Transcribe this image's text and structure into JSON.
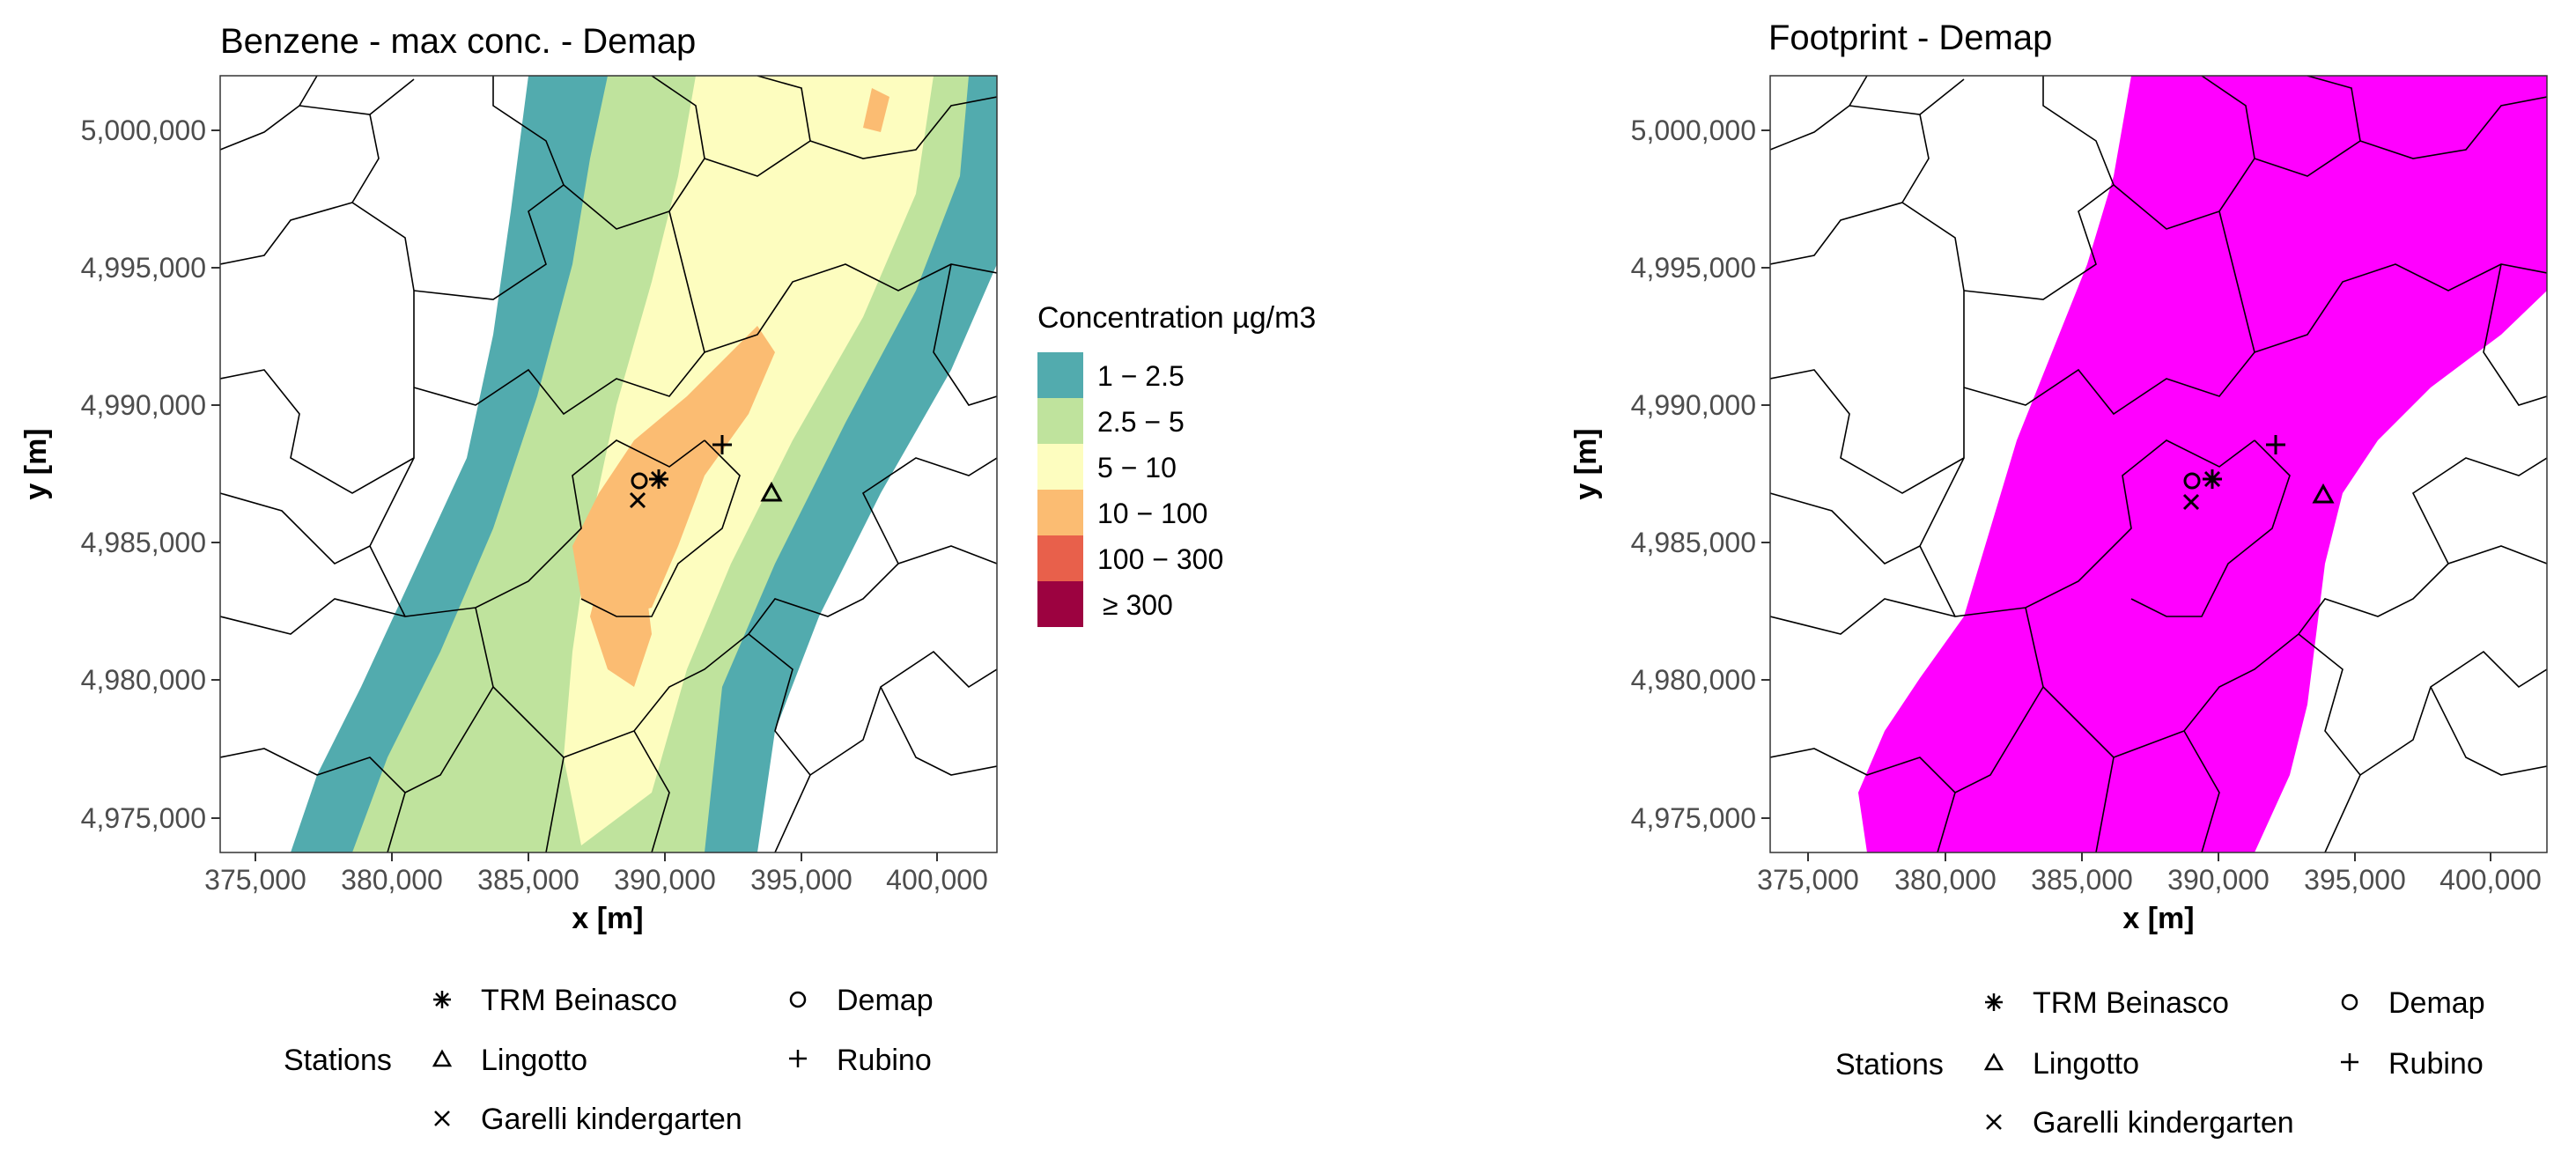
{
  "left_panel": {
    "title": "Benzene - max conc. - Demap",
    "xlabel": "x [m]",
    "ylabel": "y [m]",
    "x_ticks": [
      "375,000",
      "380,000",
      "385,000",
      "390,000",
      "395,000",
      "400,000"
    ],
    "y_ticks": [
      "5,000,000",
      "4,995,000",
      "4,990,000",
      "4,985,000",
      "4,980,000",
      "4,975,000"
    ],
    "legend": {
      "title": "Concentration µg/m3",
      "items": [
        {
          "label": "1 − 2.5",
          "color": "#52abae"
        },
        {
          "label": "2.5 − 5",
          "color": "#bfe39d"
        },
        {
          "label": "5 − 10",
          "color": "#fdfdbf"
        },
        {
          "label": "10 − 100",
          "color": "#fbbc72"
        },
        {
          "label": "100 − 300",
          "color": "#e8604b"
        },
        {
          "label": "≥ 300",
          "color": "#9c0240"
        }
      ]
    },
    "stations_legend": {
      "title": "Stations",
      "items": [
        "TRM Beinasco",
        "Lingotto",
        "Garelli kindergarten",
        "Demap",
        "Rubino"
      ]
    }
  },
  "right_panel": {
    "title": "Footprint - Demap",
    "xlabel": "x [m]",
    "ylabel": "y [m]",
    "x_ticks": [
      "375,000",
      "380,000",
      "385,000",
      "390,000",
      "395,000",
      "400,000"
    ],
    "y_ticks": [
      "5,000,000",
      "4,995,000",
      "4,990,000",
      "4,985,000",
      "4,980,000",
      "4,975,000"
    ],
    "footprint_color": "#ff00ff",
    "stations_legend": {
      "title": "Stations",
      "items": [
        "TRM Beinasco",
        "Lingotto",
        "Garelli kindergarten",
        "Demap",
        "Rubino"
      ]
    }
  },
  "chart_data": [
    {
      "type": "heatmap",
      "title": "Benzene - max conc. - Demap",
      "xlabel": "x [m]",
      "ylabel": "y [m]",
      "xlim": [
        373000,
        401500
      ],
      "ylim": [
        4974000,
        5002000
      ],
      "legend_title": "Concentration µg/m3",
      "classes": [
        "1 − 2.5",
        "2.5 − 5",
        "5 − 10",
        "10 − 100",
        "100 − 300",
        "≥ 300"
      ],
      "stations": [
        {
          "name": "TRM Beinasco",
          "marker": "asterisk",
          "x": 389600,
          "y": 4987200
        },
        {
          "name": "Lingotto",
          "marker": "triangle",
          "x": 393500,
          "y": 4986700
        },
        {
          "name": "Garelli kindergarten",
          "marker": "cross",
          "x": 388900,
          "y": 4986400
        },
        {
          "name": "Demap",
          "marker": "circle",
          "x": 388900,
          "y": 4987200
        },
        {
          "name": "Rubino",
          "marker": "plus",
          "x": 391800,
          "y": 4988500
        }
      ]
    },
    {
      "type": "heatmap",
      "title": "Footprint - Demap",
      "xlabel": "x [m]",
      "ylabel": "y [m]",
      "xlim": [
        373000,
        401500
      ],
      "ylim": [
        4974000,
        5002000
      ],
      "stations": [
        {
          "name": "TRM Beinasco",
          "marker": "asterisk",
          "x": 389600,
          "y": 4987200
        },
        {
          "name": "Lingotto",
          "marker": "triangle",
          "x": 393500,
          "y": 4986700
        },
        {
          "name": "Garelli kindergarten",
          "marker": "cross",
          "x": 388900,
          "y": 4986400
        },
        {
          "name": "Demap",
          "marker": "circle",
          "x": 388900,
          "y": 4987200
        },
        {
          "name": "Rubino",
          "marker": "plus",
          "x": 391800,
          "y": 4988500
        }
      ]
    }
  ]
}
